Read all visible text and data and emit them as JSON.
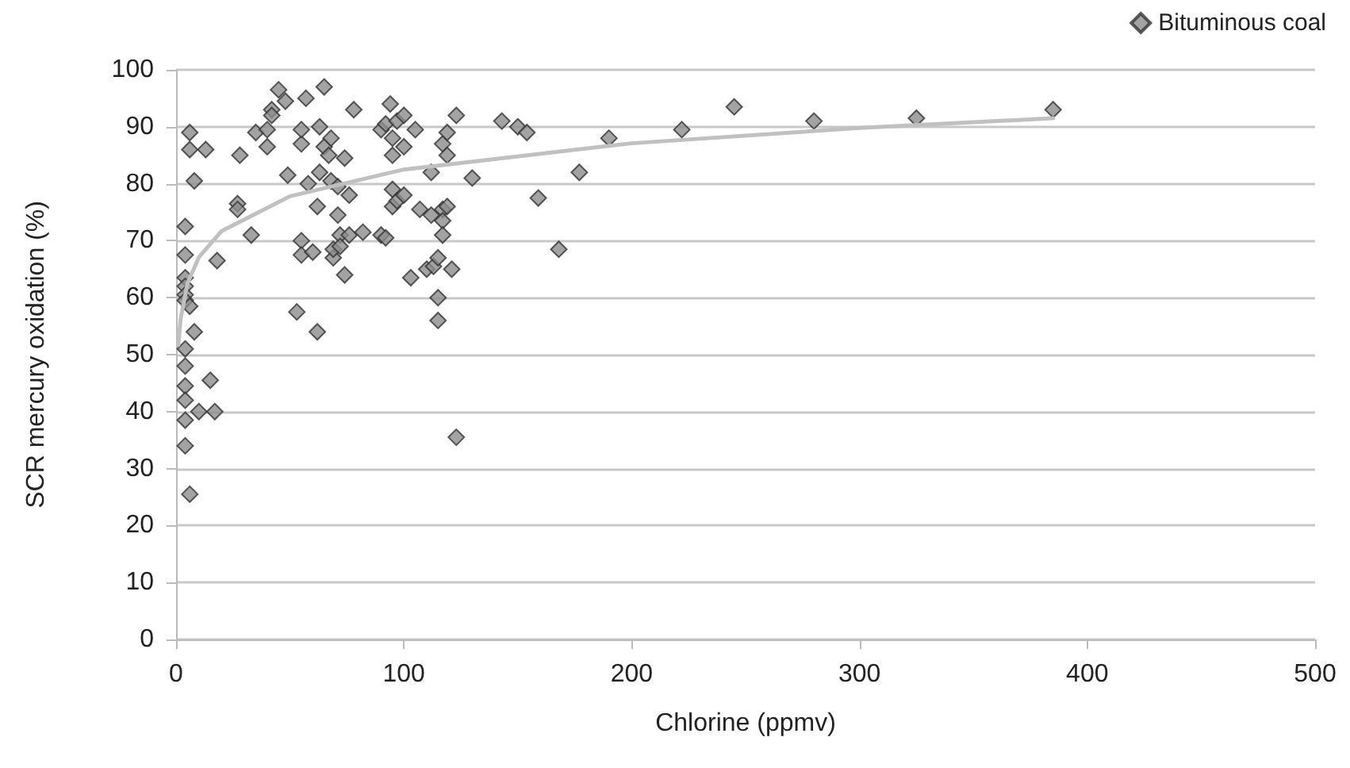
{
  "chart_data": {
    "type": "scatter",
    "xlabel": "Chlorine (ppmv)",
    "ylabel": "SCR mercury oxidation (%)",
    "xlim": [
      0,
      500
    ],
    "xticks": [
      0,
      100,
      200,
      300,
      400,
      500
    ],
    "ylim": [
      0,
      100
    ],
    "yticks": [
      0,
      10,
      20,
      30,
      40,
      50,
      60,
      70,
      80,
      90,
      100
    ],
    "grid": "y",
    "legend": "top right",
    "series": [
      {
        "name": "Bituminous coal",
        "color": "#8c8c8c",
        "marker": "diamond",
        "x": [
          4,
          4,
          4,
          4,
          4,
          4,
          4,
          4,
          4,
          4,
          4,
          4,
          6,
          6,
          6,
          6,
          8,
          8,
          10,
          13,
          15,
          17,
          18,
          27,
          27,
          28,
          33,
          35,
          40,
          40,
          42,
          42,
          45,
          48,
          49,
          53,
          55,
          55,
          55,
          55,
          57,
          58,
          60,
          62,
          62,
          63,
          63,
          65,
          65,
          67,
          68,
          68,
          69,
          69,
          71,
          71,
          72,
          72,
          74,
          74,
          76,
          76,
          78,
          82,
          90,
          90,
          92,
          92,
          94,
          95,
          95,
          95,
          95,
          97,
          97,
          100,
          100,
          100,
          103,
          105,
          107,
          110,
          112,
          112,
          113,
          115,
          115,
          115,
          117,
          117,
          117,
          117,
          119,
          119,
          119,
          121,
          123,
          123,
          130,
          143,
          150,
          154,
          159,
          168,
          177,
          190,
          222,
          245,
          280,
          325,
          385
        ],
        "values": [
          72.5,
          67.5,
          63.5,
          62,
          60.5,
          59.5,
          51,
          48,
          44.5,
          42,
          38.5,
          34,
          89,
          86,
          25.5,
          58.5,
          54,
          80.5,
          40,
          86,
          45.5,
          40,
          66.5,
          76.5,
          75.5,
          85,
          71,
          89,
          89.5,
          86.5,
          93,
          92,
          96.5,
          94.5,
          81.5,
          57.5,
          87,
          89.5,
          70,
          67.5,
          95,
          80,
          68,
          54,
          76,
          82,
          90,
          97,
          86.5,
          85,
          88,
          80.5,
          67,
          68.5,
          74.5,
          79.5,
          71,
          69,
          84.5,
          64,
          78,
          71,
          93,
          71.5,
          89.5,
          71,
          70.5,
          90.5,
          94,
          88,
          85,
          79,
          76,
          91,
          77,
          92,
          78,
          86.5,
          63.5,
          89.5,
          75.5,
          65,
          82,
          74.5,
          65.5,
          60,
          56,
          67,
          87,
          75.5,
          73.5,
          71,
          85,
          89,
          76,
          65,
          92,
          35.5,
          81,
          91,
          90,
          89,
          77.5,
          68.5,
          82,
          88,
          89.5,
          93.5,
          91,
          91.5,
          93
        ]
      },
      {
        "type": "line",
        "color": "#c0c0c0",
        "marker": "none",
        "x": [
          1,
          2,
          5,
          10,
          20,
          50,
          100,
          200,
          300,
          385
        ],
        "values": [
          51.7,
          56.3,
          62.5,
          67.1,
          71.7,
          77.8,
          82.5,
          87.1,
          89.8,
          91.5
        ]
      }
    ]
  }
}
